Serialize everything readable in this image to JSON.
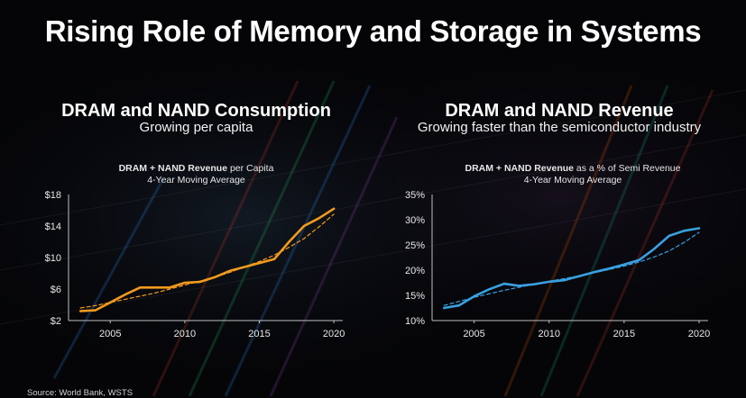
{
  "title": "Rising Role of Memory and Storage in Systems",
  "source": "Source: World Bank, WSTS",
  "colors": {
    "background": "#050508",
    "left_series": "#f39a1e",
    "right_series": "#3aa0e0",
    "text": "#ffffff"
  },
  "left_panel": {
    "title": "DRAM and NAND Consumption",
    "subtitle": "Growing per capita",
    "caption_bold": "DRAM + NAND Revenue",
    "caption_rest": " per Capita",
    "caption_line2": "4-Year Moving Average"
  },
  "right_panel": {
    "title": "DRAM and NAND Revenue",
    "subtitle": "Growing faster than the semiconductor industry",
    "caption_bold": "DRAM + NAND Revenue",
    "caption_rest": " as a % of Semi Revenue",
    "caption_line2": "4-Year Moving Average"
  },
  "chart_data": [
    {
      "type": "line",
      "x": [
        2003,
        2004,
        2005,
        2006,
        2007,
        2008,
        2009,
        2010,
        2011,
        2012,
        2013,
        2014,
        2015,
        2016,
        2017,
        2018,
        2019,
        2020
      ],
      "series": [
        {
          "values": [
            3.2,
            3.3,
            4.3,
            5.3,
            6.2,
            6.2,
            6.2,
            6.8,
            6.9,
            7.5,
            8.3,
            8.8,
            9.3,
            9.8,
            12.0,
            14.0,
            15.0,
            16.2
          ],
          "style": "solid"
        },
        {
          "values": [
            3.6,
            3.9,
            4.3,
            4.7,
            5.1,
            5.5,
            6.0,
            6.5,
            7.0,
            7.5,
            8.1,
            8.8,
            9.5,
            10.3,
            11.3,
            12.4,
            13.9,
            15.5
          ],
          "style": "dashed",
          "role": "trend"
        }
      ],
      "xticks": [
        2005,
        2010,
        2015,
        2020
      ],
      "yticks": [
        2,
        6,
        10,
        14,
        18
      ],
      "ytick_labels": [
        "$2",
        "$6",
        "$10",
        "$14",
        "$18"
      ],
      "xlim": [
        2002.2,
        2020.6
      ],
      "ylim": [
        2,
        18
      ]
    },
    {
      "type": "line",
      "x": [
        2003,
        2004,
        2005,
        2006,
        2007,
        2008,
        2009,
        2010,
        2011,
        2012,
        2013,
        2014,
        2015,
        2016,
        2017,
        2018,
        2019,
        2020
      ],
      "series": [
        {
          "values": [
            12.5,
            13.0,
            14.8,
            16.2,
            17.3,
            16.9,
            17.2,
            17.7,
            18.0,
            18.8,
            19.6,
            20.3,
            21.1,
            22.0,
            24.2,
            26.8,
            27.8,
            28.3
          ],
          "style": "solid"
        },
        {
          "values": [
            13.0,
            13.8,
            14.6,
            15.3,
            16.0,
            16.6,
            17.2,
            17.8,
            18.3,
            18.9,
            19.5,
            20.1,
            20.8,
            21.6,
            22.6,
            23.8,
            25.5,
            27.5
          ],
          "style": "dashed",
          "role": "trend"
        }
      ],
      "xticks": [
        2005,
        2010,
        2015,
        2020
      ],
      "yticks": [
        10,
        15,
        20,
        25,
        30,
        35
      ],
      "ytick_labels": [
        "10%",
        "15%",
        "20%",
        "25%",
        "30%",
        "35%"
      ],
      "xlim": [
        2002.2,
        2020.6
      ],
      "ylim": [
        10,
        35
      ]
    }
  ]
}
